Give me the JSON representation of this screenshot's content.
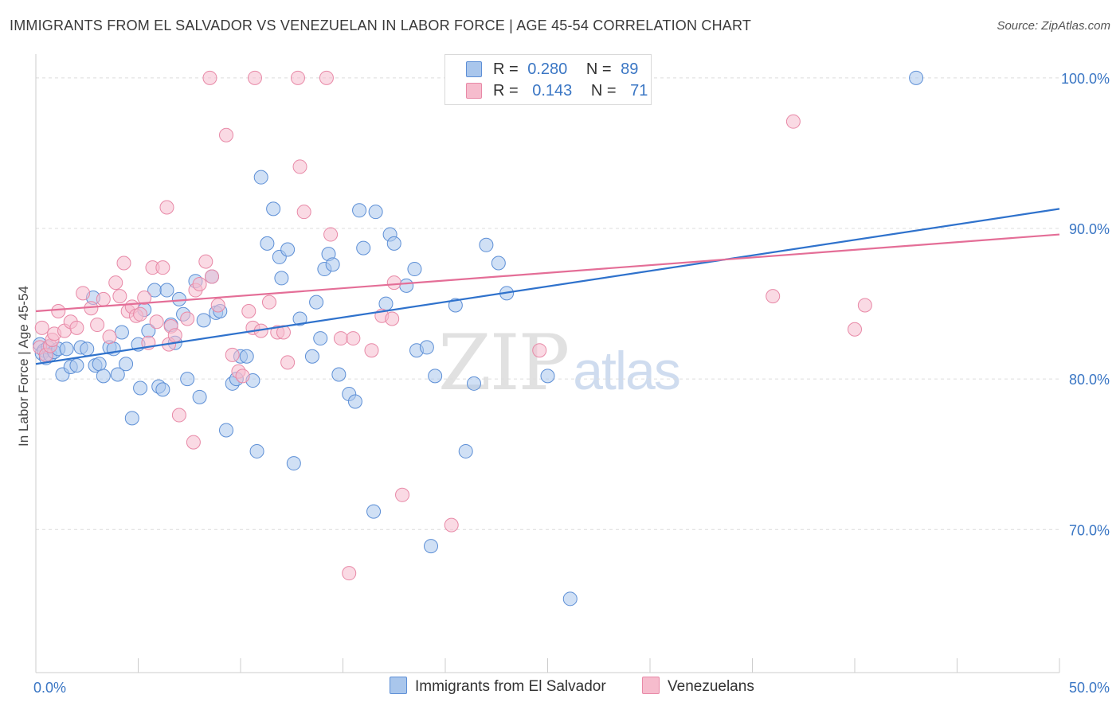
{
  "title": "IMMIGRANTS FROM EL SALVADOR VS VENEZUELAN IN LABOR FORCE | AGE 45-54 CORRELATION CHART",
  "source": "Source: ZipAtlas.com",
  "watermark": {
    "zip": "ZIP",
    "atlas": "atlas"
  },
  "legend": {
    "series1": {
      "r_label": "R =",
      "r_value": "0.280",
      "n_label": "N =",
      "n_value": "89"
    },
    "series2": {
      "r_label": "R =",
      "r_value": "0.143",
      "n_label": "N =",
      "n_value": "71"
    }
  },
  "colors": {
    "blue_fill": "#a9c6ec",
    "blue_stroke": "#5d8fd6",
    "blue_line": "#2f72cc",
    "pink_fill": "#f6bccd",
    "pink_stroke": "#e889a7",
    "pink_line": "#e46e97",
    "axis_text": "#3a76c4",
    "grid": "#dcdcdc"
  },
  "chart_data": {
    "type": "scatter",
    "title": "IMMIGRANTS FROM EL SALVADOR VS VENEZUELAN IN LABOR FORCE | AGE 45-54 CORRELATION CHART",
    "xlabel": "",
    "ylabel": "In Labor Force | Age 45-54",
    "xlim": [
      0,
      50
    ],
    "ylim": [
      60.5,
      102
    ],
    "x_ticks": [
      "0.0%",
      "50.0%"
    ],
    "y_ticks": [
      {
        "value": 70,
        "label": "70.0%"
      },
      {
        "value": 80,
        "label": "80.0%"
      },
      {
        "value": 90,
        "label": "90.0%"
      },
      {
        "value": 100,
        "label": "100.0%"
      }
    ],
    "grid": true,
    "legend_position": "top-center",
    "series": [
      {
        "name": "Immigrants from El Salvador",
        "color": "#a9c6ec",
        "trend": {
          "x": [
            0,
            50
          ],
          "y": [
            81.0,
            91.3
          ]
        },
        "points": [
          [
            0.2,
            82.3
          ],
          [
            0.3,
            81.7
          ],
          [
            0.4,
            81.9
          ],
          [
            0.5,
            81.4
          ],
          [
            0.6,
            82.1
          ],
          [
            0.7,
            81.6
          ],
          [
            0.9,
            81.8
          ],
          [
            1.1,
            82.0
          ],
          [
            1.3,
            80.3
          ],
          [
            1.5,
            82.0
          ],
          [
            1.7,
            80.8
          ],
          [
            2.0,
            80.9
          ],
          [
            2.2,
            82.1
          ],
          [
            2.5,
            82.0
          ],
          [
            2.8,
            85.4
          ],
          [
            2.9,
            80.9
          ],
          [
            3.1,
            81.0
          ],
          [
            3.3,
            80.2
          ],
          [
            3.6,
            82.1
          ],
          [
            3.8,
            82.0
          ],
          [
            4.0,
            80.3
          ],
          [
            4.2,
            83.1
          ],
          [
            4.4,
            81.0
          ],
          [
            4.7,
            77.4
          ],
          [
            5.0,
            82.3
          ],
          [
            5.1,
            79.4
          ],
          [
            5.3,
            84.6
          ],
          [
            5.5,
            83.2
          ],
          [
            5.8,
            85.9
          ],
          [
            6.0,
            79.5
          ],
          [
            6.2,
            79.3
          ],
          [
            6.4,
            85.9
          ],
          [
            6.6,
            83.6
          ],
          [
            6.8,
            82.4
          ],
          [
            7.0,
            85.3
          ],
          [
            7.2,
            84.3
          ],
          [
            7.4,
            80.0
          ],
          [
            7.8,
            86.5
          ],
          [
            8.0,
            78.8
          ],
          [
            8.2,
            83.9
          ],
          [
            8.6,
            86.8
          ],
          [
            8.8,
            84.4
          ],
          [
            9.0,
            84.5
          ],
          [
            9.3,
            76.6
          ],
          [
            9.6,
            79.7
          ],
          [
            9.8,
            80.0
          ],
          [
            10.0,
            81.5
          ],
          [
            10.3,
            81.5
          ],
          [
            10.6,
            79.9
          ],
          [
            10.8,
            75.2
          ],
          [
            11.0,
            93.4
          ],
          [
            11.3,
            89.0
          ],
          [
            11.6,
            91.3
          ],
          [
            11.9,
            88.1
          ],
          [
            12.0,
            86.7
          ],
          [
            12.3,
            88.6
          ],
          [
            12.6,
            74.4
          ],
          [
            12.9,
            84.0
          ],
          [
            13.5,
            81.5
          ],
          [
            13.7,
            85.1
          ],
          [
            13.9,
            82.7
          ],
          [
            14.1,
            87.3
          ],
          [
            14.3,
            88.3
          ],
          [
            14.5,
            87.6
          ],
          [
            14.8,
            80.3
          ],
          [
            15.3,
            79.0
          ],
          [
            15.6,
            78.5
          ],
          [
            15.8,
            91.2
          ],
          [
            16.0,
            88.7
          ],
          [
            16.5,
            71.2
          ],
          [
            16.6,
            91.1
          ],
          [
            17.1,
            85.0
          ],
          [
            17.3,
            89.6
          ],
          [
            17.5,
            89.0
          ],
          [
            18.1,
            86.2
          ],
          [
            18.5,
            87.3
          ],
          [
            18.6,
            81.9
          ],
          [
            19.1,
            82.1
          ],
          [
            19.3,
            68.9
          ],
          [
            19.5,
            80.2
          ],
          [
            20.5,
            84.9
          ],
          [
            21.0,
            75.2
          ],
          [
            21.4,
            79.7
          ],
          [
            22.0,
            88.9
          ],
          [
            22.6,
            87.7
          ],
          [
            23.0,
            85.7
          ],
          [
            25.0,
            80.2
          ],
          [
            26.1,
            65.4
          ],
          [
            43.0,
            100.0
          ]
        ]
      },
      {
        "name": "Venezuelans",
        "color": "#f6bccd",
        "trend": {
          "x": [
            0,
            50
          ],
          "y": [
            84.5,
            89.6
          ]
        },
        "points": [
          [
            0.2,
            82.1
          ],
          [
            0.3,
            83.4
          ],
          [
            0.5,
            81.6
          ],
          [
            0.7,
            82.2
          ],
          [
            0.8,
            82.6
          ],
          [
            0.9,
            83.0
          ],
          [
            1.1,
            84.5
          ],
          [
            1.4,
            83.2
          ],
          [
            1.7,
            83.8
          ],
          [
            2.0,
            83.4
          ],
          [
            2.3,
            85.7
          ],
          [
            2.7,
            84.7
          ],
          [
            3.0,
            83.6
          ],
          [
            3.3,
            85.3
          ],
          [
            3.6,
            82.8
          ],
          [
            3.9,
            86.4
          ],
          [
            4.1,
            85.5
          ],
          [
            4.3,
            87.7
          ],
          [
            4.5,
            84.5
          ],
          [
            4.7,
            84.8
          ],
          [
            4.9,
            84.2
          ],
          [
            5.1,
            84.3
          ],
          [
            5.3,
            85.4
          ],
          [
            5.5,
            82.4
          ],
          [
            5.7,
            87.4
          ],
          [
            5.9,
            83.8
          ],
          [
            6.2,
            87.4
          ],
          [
            6.4,
            91.4
          ],
          [
            6.5,
            82.3
          ],
          [
            6.6,
            83.5
          ],
          [
            6.8,
            82.9
          ],
          [
            7.0,
            77.6
          ],
          [
            7.4,
            84.0
          ],
          [
            7.7,
            75.8
          ],
          [
            7.8,
            85.9
          ],
          [
            8.0,
            86.3
          ],
          [
            8.3,
            87.8
          ],
          [
            8.6,
            86.8
          ],
          [
            8.9,
            84.9
          ],
          [
            9.3,
            96.2
          ],
          [
            9.6,
            81.6
          ],
          [
            9.9,
            80.5
          ],
          [
            10.1,
            80.2
          ],
          [
            10.4,
            84.5
          ],
          [
            10.6,
            83.4
          ],
          [
            11.0,
            83.2
          ],
          [
            11.4,
            85.1
          ],
          [
            11.8,
            83.1
          ],
          [
            12.1,
            83.1
          ],
          [
            12.3,
            81.1
          ],
          [
            12.9,
            94.1
          ],
          [
            13.1,
            91.1
          ],
          [
            14.4,
            89.6
          ],
          [
            14.9,
            82.7
          ],
          [
            15.3,
            67.1
          ],
          [
            15.5,
            82.7
          ],
          [
            16.4,
            81.9
          ],
          [
            16.9,
            84.2
          ],
          [
            17.4,
            84.0
          ],
          [
            17.5,
            86.4
          ],
          [
            17.9,
            72.3
          ],
          [
            20.3,
            70.3
          ],
          [
            24.6,
            81.9
          ],
          [
            36.0,
            85.5
          ],
          [
            37.0,
            97.1
          ],
          [
            40.0,
            83.3
          ],
          [
            40.5,
            84.9
          ],
          [
            8.5,
            100.0
          ],
          [
            10.7,
            100.0
          ],
          [
            12.8,
            100.0
          ],
          [
            14.2,
            100.0
          ]
        ]
      }
    ]
  },
  "bottom_legend": {
    "item1": "Immigrants from El Salvador",
    "item2": "Venezuelans"
  }
}
